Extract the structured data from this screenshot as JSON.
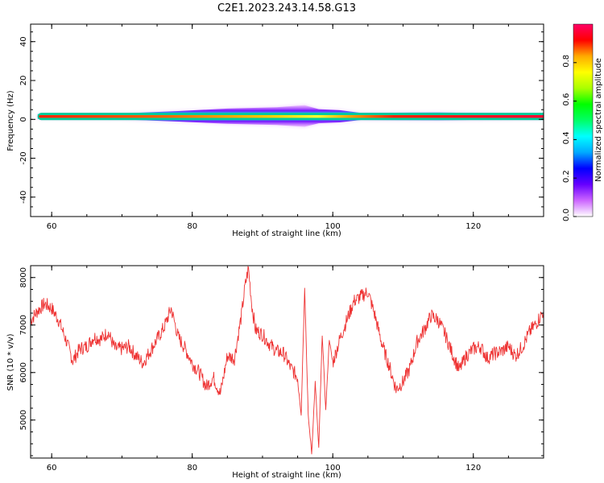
{
  "title": "C2E1.2023.243.14.58.G13",
  "chart_data": [
    {
      "type": "heatmap",
      "xlabel": "Height of straight line (km)",
      "ylabel": "Frequency (Hz)",
      "xlim": [
        57,
        130
      ],
      "ylim": [
        -50,
        49
      ],
      "x_ticks": [
        60,
        80,
        100,
        120
      ],
      "y_ticks": [
        -40,
        -20,
        0,
        20,
        40
      ],
      "colorbar": {
        "label": "Normalized spectral amplitude",
        "range": [
          0,
          1
        ],
        "ticks": [
          0.0,
          0.2,
          0.4,
          0.6,
          0.8
        ],
        "tick_labels": [
          "0.0",
          "0.2",
          "0.4",
          "0.6",
          "0.8"
        ],
        "colors": [
          "#ffffff",
          "#cc66ff",
          "#6600ff",
          "#0000ff",
          "#00aaff",
          "#00ffff",
          "#00ff66",
          "#00ff00",
          "#aaff00",
          "#ffff00",
          "#ffaa00",
          "#ff0000",
          "#ff0066"
        ]
      },
      "band": {
        "x_range": [
          58,
          130
        ],
        "center_freq_hz": 1.5,
        "core_width_hz": 2.5,
        "broadening": [
          {
            "x": 58,
            "extra_hz": 0
          },
          {
            "x": 70,
            "extra_hz": 0.3
          },
          {
            "x": 78,
            "extra_hz": 1.5
          },
          {
            "x": 85,
            "extra_hz": 2.8
          },
          {
            "x": 92,
            "extra_hz": 3.5
          },
          {
            "x": 96,
            "extra_hz": 4.5
          },
          {
            "x": 98,
            "extra_hz": 2.5
          },
          {
            "x": 101,
            "extra_hz": 2.0
          },
          {
            "x": 104,
            "extra_hz": 0.6
          },
          {
            "x": 115,
            "extra_hz": 0.8
          },
          {
            "x": 130,
            "extra_hz": 0.2
          }
        ]
      }
    },
    {
      "type": "line",
      "xlabel": "Height of straight line (km)",
      "ylabel": "SNR (10 * v/v)",
      "xlim": [
        57,
        130
      ],
      "ylim": [
        4200,
        8250
      ],
      "x_ticks": [
        60,
        80,
        100,
        120
      ],
      "y_ticks": [
        5000,
        6000,
        7000,
        8000
      ],
      "series": [
        {
          "color": "#ee3333",
          "x": [
            57,
            58,
            59,
            60,
            61,
            62,
            63,
            64,
            65,
            66,
            67,
            68,
            69,
            70,
            71,
            72,
            73,
            74,
            75,
            76,
            77,
            78,
            79,
            80,
            81,
            82,
            83,
            84,
            85,
            86,
            87,
            87.5,
            88,
            88.5,
            89,
            90,
            91,
            92,
            93,
            94,
            95,
            95.5,
            96,
            96.5,
            97,
            97.5,
            98,
            98.5,
            99,
            99.5,
            100,
            101,
            102,
            103,
            104,
            105,
            106,
            107,
            108,
            109,
            110,
            111,
            112,
            113,
            114,
            115,
            116,
            117,
            118,
            119,
            120,
            121,
            122,
            123,
            124,
            125,
            126,
            127,
            128,
            129,
            130
          ],
          "y": [
            7100,
            7300,
            7450,
            7350,
            7100,
            6700,
            6250,
            6500,
            6550,
            6750,
            6700,
            6850,
            6500,
            6500,
            6550,
            6350,
            6200,
            6450,
            6700,
            6950,
            7350,
            6750,
            6500,
            6200,
            6000,
            5700,
            5900,
            5550,
            6350,
            6300,
            7200,
            7800,
            8200,
            7400,
            6900,
            6800,
            6600,
            6450,
            6400,
            6100,
            5900,
            5100,
            7800,
            5100,
            4300,
            5800,
            4400,
            6800,
            5200,
            6700,
            6200,
            6700,
            7100,
            7500,
            7600,
            7700,
            7200,
            6600,
            6150,
            5650,
            5800,
            6100,
            6650,
            6900,
            7200,
            7100,
            6800,
            6400,
            6050,
            6350,
            6500,
            6550,
            6300,
            6400,
            6450,
            6550,
            6350,
            6550,
            6850,
            7050,
            7300
          ]
        }
      ]
    }
  ]
}
